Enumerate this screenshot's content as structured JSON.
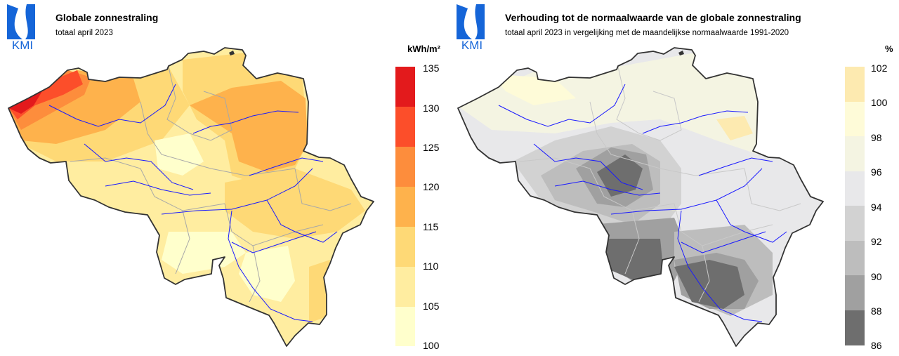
{
  "logo_text": "KMI",
  "colors": {
    "logo_blue": "#1565d8",
    "border": "#333333",
    "rivers": "#1a1aff",
    "provinces": "#a8a8a8"
  },
  "left": {
    "title": "Globale zonnestraling",
    "subtitle": "totaal april 2023",
    "unit": "kWh/m²",
    "legend": [
      {
        "label": "135",
        "color": "#e31a1c"
      },
      {
        "label": "130",
        "color": "#fc4e2a"
      },
      {
        "label": "125",
        "color": "#fd8d3c"
      },
      {
        "label": "120",
        "color": "#feb24c"
      },
      {
        "label": "115",
        "color": "#fed976"
      },
      {
        "label": "110",
        "color": "#ffeda0"
      },
      {
        "label": "105",
        "color": "#ffffcc"
      },
      {
        "label": "100",
        "color": ""
      }
    ]
  },
  "right": {
    "title": "Verhouding tot de normaalwaarde van de globale zonnestraling",
    "subtitle": "totaal april 2023 in vergelijking met de maandelijkse normaalwaarde 1991-2020",
    "unit": "%",
    "legend": [
      {
        "label": "102",
        "color": "#fdeab0"
      },
      {
        "label": "100",
        "color": "#fefbd8"
      },
      {
        "label": "98",
        "color": "#f4f4e2"
      },
      {
        "label": "96",
        "color": "#e8e8ea"
      },
      {
        "label": "94",
        "color": "#d2d2d2"
      },
      {
        "label": "92",
        "color": "#bdbdbd"
      },
      {
        "label": "90",
        "color": "#a0a0a0"
      },
      {
        "label": "88",
        "color": "#6e6e6e"
      },
      {
        "label": "86",
        "color": ""
      }
    ]
  }
}
